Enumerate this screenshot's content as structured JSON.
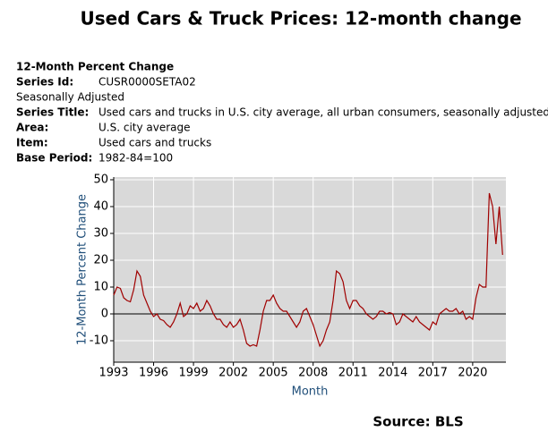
{
  "title": "Used Cars & Truck Prices:  12-month change",
  "metadata": {
    "heading": "12-Month Percent Change",
    "series_id": {
      "label": "Series Id:",
      "value": "CUSR0000SETA02"
    },
    "adjustment": "Seasonally Adjusted",
    "rows": [
      {
        "label": "Series Title:",
        "value": "Used cars and trucks in U.S. city average, all urban consumers, seasonally adjusted"
      },
      {
        "label": "Area:",
        "value": "U.S. city average"
      },
      {
        "label": "Item:",
        "value": "Used cars and trucks"
      },
      {
        "label": "Base Period:",
        "value": "1982-84=100"
      }
    ]
  },
  "chart_data": {
    "type": "line",
    "x_label": "Month",
    "y_label": "12-Month Percent Change",
    "color": "#a00000",
    "grid": true,
    "xlim": [
      1993,
      2022.5
    ],
    "xticks": [
      1993,
      1996,
      1999,
      2002,
      2005,
      2008,
      2011,
      2014,
      2017,
      2020
    ],
    "ylim": [
      -18,
      51
    ],
    "yticks": [
      -10,
      0,
      10,
      20,
      30,
      40,
      50
    ],
    "x": [
      1993,
      1993.25,
      1993.5,
      1993.75,
      1994,
      1994.25,
      1994.5,
      1994.75,
      1995,
      1995.25,
      1995.5,
      1995.75,
      1996,
      1996.25,
      1996.5,
      1996.75,
      1997,
      1997.25,
      1997.5,
      1997.75,
      1998,
      1998.25,
      1998.5,
      1998.75,
      1999,
      1999.25,
      1999.5,
      1999.75,
      2000,
      2000.25,
      2000.5,
      2000.75,
      2001,
      2001.25,
      2001.5,
      2001.75,
      2002,
      2002.25,
      2002.5,
      2002.75,
      2003,
      2003.25,
      2003.5,
      2003.75,
      2004,
      2004.25,
      2004.5,
      2004.75,
      2005,
      2005.25,
      2005.5,
      2005.75,
      2006,
      2006.25,
      2006.5,
      2006.75,
      2007,
      2007.25,
      2007.5,
      2007.75,
      2008,
      2008.25,
      2008.5,
      2008.75,
      2009,
      2009.25,
      2009.5,
      2009.75,
      2010,
      2010.25,
      2010.5,
      2010.75,
      2011,
      2011.25,
      2011.5,
      2011.75,
      2012,
      2012.25,
      2012.5,
      2012.75,
      2013,
      2013.25,
      2013.5,
      2013.75,
      2014,
      2014.25,
      2014.5,
      2014.75,
      2015,
      2015.25,
      2015.5,
      2015.75,
      2016,
      2016.25,
      2016.5,
      2016.75,
      2017,
      2017.25,
      2017.5,
      2017.75,
      2018,
      2018.25,
      2018.5,
      2018.75,
      2019,
      2019.25,
      2019.5,
      2019.75,
      2020,
      2020.25,
      2020.5,
      2020.75,
      2021,
      2021.25,
      2021.5,
      2021.75,
      2022,
      2022.25
    ],
    "values": [
      7,
      10,
      9.5,
      6,
      5,
      4.5,
      9,
      16,
      14,
      7,
      4,
      1,
      -1,
      0,
      -2,
      -2.5,
      -4,
      -5,
      -3,
      0,
      4,
      -1,
      0,
      3,
      2,
      4,
      1,
      2,
      5,
      3,
      0,
      -2,
      -2,
      -4,
      -5,
      -3,
      -5,
      -4,
      -2,
      -6,
      -11,
      -12,
      -11.5,
      -12,
      -6,
      1,
      5,
      5,
      7,
      4,
      2,
      1,
      1,
      -1,
      -3,
      -5,
      -3,
      1,
      2,
      -1,
      -4,
      -8,
      -12,
      -10,
      -6,
      -3,
      5,
      16,
      15,
      12,
      5,
      2,
      5,
      5,
      3,
      2,
      0,
      -1,
      -2,
      -1,
      1,
      1,
      0,
      0.5,
      0,
      -4,
      -3,
      0,
      -1,
      -2,
      -3,
      -1,
      -3,
      -4,
      -5,
      -6,
      -3,
      -4,
      0,
      1,
      2,
      1,
      1,
      2,
      0,
      1,
      -2,
      -1,
      -2,
      6,
      11,
      10,
      10,
      45,
      40,
      26,
      40,
      22
    ]
  },
  "source": "Source: BLS"
}
